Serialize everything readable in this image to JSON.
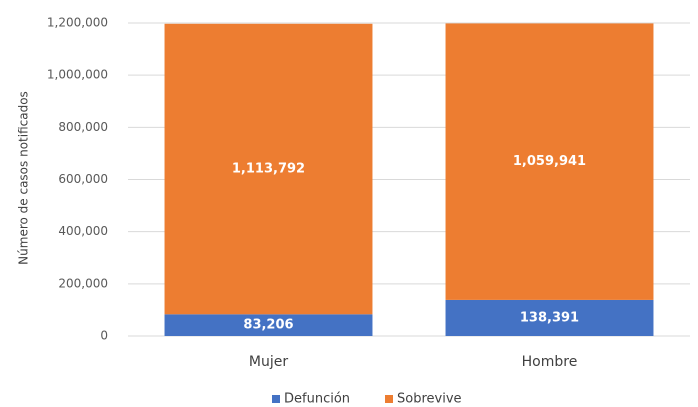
{
  "chart_data": {
    "type": "bar",
    "stacked": true,
    "title": "",
    "xlabel": "",
    "ylabel": "Número de casos notificados",
    "categories": [
      "Mujer",
      "Hombre"
    ],
    "series": [
      {
        "name": "Defunción",
        "values": [
          83206,
          138391
        ],
        "labels": [
          "83,206",
          "138,391"
        ],
        "color": "#4472c4"
      },
      {
        "name": "Sobrevive",
        "values": [
          1113792,
          1059941
        ],
        "labels": [
          "1,113,792",
          "1,059,941"
        ],
        "color": "#ed7d31"
      }
    ],
    "ylim": [
      0,
      1200000
    ],
    "yticks": [
      0,
      200000,
      400000,
      600000,
      800000,
      1000000,
      1200000
    ],
    "ytick_labels": [
      "0",
      "200,000",
      "400,000",
      "600,000",
      "800,000",
      "1,000,000",
      "1,200,000"
    ],
    "grid": true,
    "legend": "bottom"
  }
}
